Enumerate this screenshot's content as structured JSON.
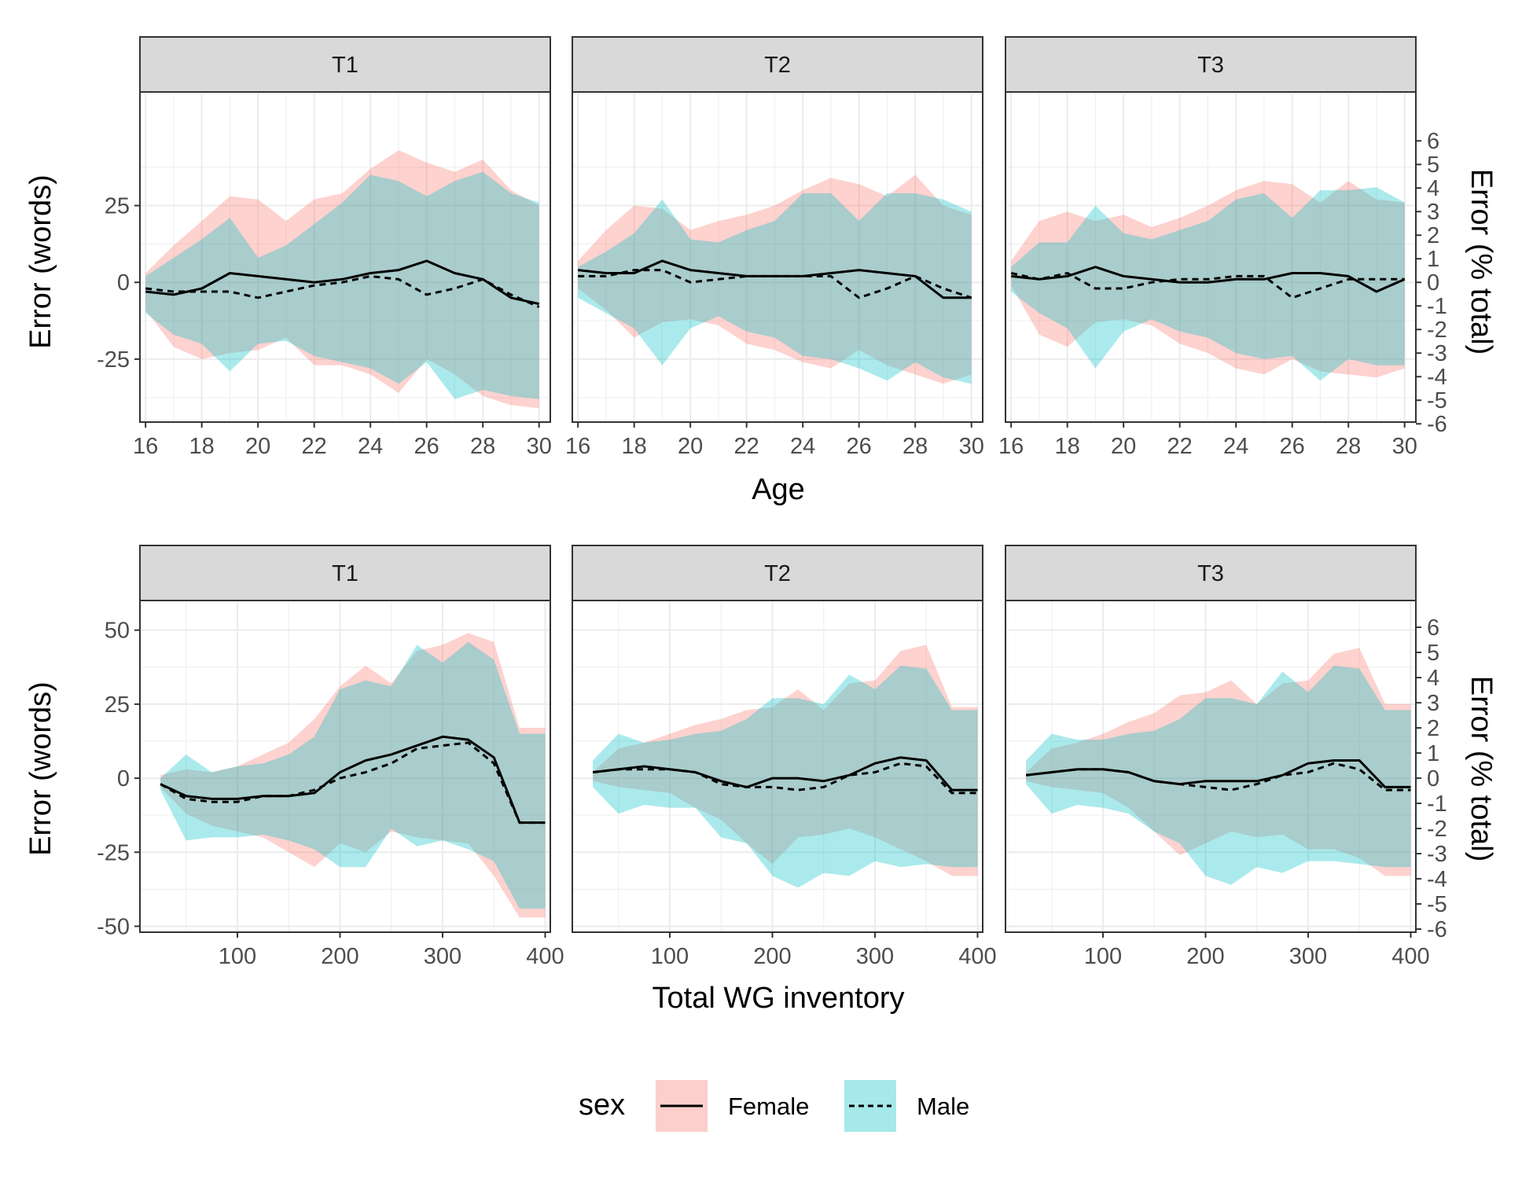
{
  "figure": {
    "x_axis_titles": [
      "Age",
      "Total WG inventory"
    ],
    "y_axis_title_left": "Error (words)",
    "y_axis_title_right": "Error (% total)"
  },
  "colors": {
    "female_fill": "#F8766D",
    "male_fill": "#00BFC4",
    "line": "#000000"
  },
  "legend": {
    "title": "sex",
    "placement": "bottom",
    "items": [
      {
        "label": "Female",
        "line": "solid",
        "fill": "#F8766D"
      },
      {
        "label": "Male",
        "line": "dashed",
        "fill": "#00BFC4"
      }
    ]
  },
  "chart_data": [
    {
      "type": "area",
      "facet": "T1",
      "xlabel": "Age",
      "ylabel": "Error (words)",
      "y2label": "Error (% total)",
      "xlim": [
        15.8,
        30.4
      ],
      "ylim": [
        -45.5,
        62
      ],
      "xticks": [
        16,
        18,
        20,
        22,
        24,
        26,
        28,
        30
      ],
      "yticks": [
        -25,
        0,
        25
      ],
      "y2ticks": [
        -6,
        -5,
        -4,
        -3,
        -2,
        -1,
        0,
        1,
        2,
        3,
        4,
        5,
        6
      ],
      "x": [
        16,
        17,
        18,
        19,
        20,
        21,
        22,
        23,
        24,
        25,
        26,
        27,
        28,
        29,
        30
      ],
      "series": [
        {
          "name": "Female",
          "line": [
            -3,
            -4,
            -2,
            3,
            2,
            1,
            0,
            1,
            3,
            4,
            7,
            3,
            1,
            -5,
            -7
          ],
          "lower": [
            -9,
            -21,
            -25,
            -23,
            -22,
            -18,
            -27,
            -27,
            -30,
            -36,
            -25,
            -30,
            -37,
            -40,
            -41
          ],
          "upper": [
            3,
            12,
            20,
            28,
            27,
            20,
            27,
            29,
            37,
            43,
            39,
            36,
            40,
            30,
            25
          ]
        },
        {
          "name": "Male",
          "line": [
            -2,
            -3,
            -3,
            -3,
            -5,
            -3,
            -1,
            0,
            2,
            1,
            -4,
            -2,
            1,
            -4,
            -8
          ],
          "lower": [
            -10,
            -17,
            -20,
            -29,
            -20,
            -19,
            -24,
            -26,
            -28,
            -33,
            -26,
            -38,
            -35,
            -37,
            -38
          ],
          "upper": [
            2,
            8,
            14,
            21,
            8,
            12,
            19,
            26,
            35,
            33,
            28,
            33,
            36,
            29,
            26
          ]
        }
      ]
    },
    {
      "type": "area",
      "facet": "T2",
      "xlabel": "Age",
      "ylabel": "Error (words)",
      "y2label": "Error (% total)",
      "xlim": [
        15.8,
        30.4
      ],
      "ylim": [
        -45.5,
        62
      ],
      "xticks": [
        16,
        18,
        20,
        22,
        24,
        26,
        28,
        30
      ],
      "yticks": [
        -25,
        0,
        25
      ],
      "y2ticks": [
        -6,
        -5,
        -4,
        -3,
        -2,
        -1,
        0,
        1,
        2,
        3,
        4,
        5,
        6
      ],
      "x": [
        16,
        17,
        18,
        19,
        20,
        21,
        22,
        23,
        24,
        25,
        26,
        27,
        28,
        29,
        30
      ],
      "series": [
        {
          "name": "Female",
          "line": [
            4,
            3,
            3,
            7,
            4,
            3,
            2,
            2,
            2,
            3,
            4,
            3,
            2,
            -5,
            -5
          ],
          "lower": [
            -2,
            -9,
            -18,
            -13,
            -12,
            -14,
            -20,
            -22,
            -26,
            -28,
            -22,
            -27,
            -30,
            -33,
            -30
          ],
          "upper": [
            7,
            17,
            25,
            24,
            17,
            20,
            22,
            25,
            30,
            34,
            32,
            28,
            35,
            25,
            22
          ],
          "female_upper_T2": [
            7,
            17,
            25,
            24,
            17,
            20,
            22,
            25,
            30,
            34,
            32,
            28,
            35,
            25,
            22
          ]
        },
        {
          "name": "Male",
          "line": [
            2,
            2,
            4,
            4,
            0,
            1,
            2,
            2,
            2,
            2,
            -5,
            -2,
            2,
            -2,
            -5
          ],
          "lower": [
            -5,
            -10,
            -15,
            -27,
            -15,
            -11,
            -16,
            -18,
            -24,
            -25,
            -28,
            -32,
            -26,
            -31,
            -33
          ],
          "upper": [
            5,
            10,
            16,
            27,
            14,
            13,
            17,
            20,
            29,
            29,
            20,
            29,
            29,
            27,
            23
          ]
        }
      ]
    },
    {
      "type": "area",
      "facet": "T3",
      "xlabel": "Age",
      "ylabel": "Error (words)",
      "y2label": "Error (% total)",
      "xlim": [
        15.8,
        30.4
      ],
      "ylim": [
        -45.5,
        62
      ],
      "xticks": [
        16,
        18,
        20,
        22,
        24,
        26,
        28,
        30
      ],
      "yticks": [
        -25,
        0,
        25
      ],
      "y2ticks": [
        -6,
        -5,
        -4,
        -3,
        -2,
        -1,
        0,
        1,
        2,
        3,
        4,
        5,
        6
      ],
      "x": [
        16,
        17,
        18,
        19,
        20,
        21,
        22,
        23,
        24,
        25,
        26,
        27,
        28,
        29,
        30
      ],
      "series": [
        {
          "name": "Female",
          "line": [
            2,
            1,
            2,
            5,
            2,
            1,
            0,
            0,
            1,
            1,
            3,
            3,
            2,
            -3,
            1
          ],
          "lower": [
            -1,
            -17,
            -21,
            -13,
            -12,
            -14,
            -20,
            -23,
            -28,
            -30,
            -25,
            -29,
            -30,
            -31,
            -28
          ],
          "upper": [
            7,
            20,
            23,
            20,
            22,
            18,
            21,
            25,
            30,
            33,
            32,
            26,
            33,
            27,
            26
          ],
          "female_upper_T3": [
            7,
            20,
            23,
            20,
            22,
            18,
            21,
            25,
            30,
            33,
            32,
            26,
            33,
            27,
            26
          ]
        },
        {
          "name": "Male",
          "line": [
            3,
            1,
            3,
            -2,
            -2,
            0,
            1,
            1,
            2,
            2,
            -5,
            -2,
            1,
            1,
            1
          ],
          "lower": [
            -3,
            -10,
            -15,
            -28,
            -16,
            -12,
            -16,
            -18,
            -23,
            -25,
            -24,
            -32,
            -25,
            -27,
            -27
          ],
          "upper": [
            5,
            13,
            13,
            25,
            16,
            14,
            17,
            20,
            27,
            29,
            21,
            30,
            30,
            31,
            26
          ]
        }
      ]
    },
    {
      "type": "area",
      "facet": "T1",
      "xlabel": "Total WG inventory",
      "ylabel": "Error (words)",
      "y2label": "Error (% total)",
      "xlim": [
        5,
        405
      ],
      "ylim": [
        -52,
        60
      ],
      "xticks": [
        100,
        200,
        300,
        400
      ],
      "yticks": [
        -50,
        -25,
        0,
        25,
        50
      ],
      "y2ticks": [
        -6,
        -5,
        -4,
        -3,
        -2,
        -1,
        0,
        1,
        2,
        3,
        4,
        5,
        6
      ],
      "x": [
        25,
        50,
        75,
        100,
        125,
        150,
        175,
        200,
        225,
        250,
        275,
        300,
        325,
        350,
        375,
        400
      ],
      "series": [
        {
          "name": "Female",
          "line": [
            -2,
            -6,
            -7,
            -7,
            -6,
            -6,
            -5,
            2,
            6,
            8,
            11,
            14,
            13,
            7,
            -15,
            -15
          ],
          "lower": [
            -3,
            -12,
            -16,
            -18,
            -20,
            -25,
            -30,
            -22,
            -25,
            -18,
            -20,
            -21,
            -22,
            -33,
            -47,
            -47
          ],
          "upper": [
            1,
            3,
            2,
            4,
            8,
            12,
            20,
            31,
            38,
            32,
            43,
            45,
            49,
            46,
            17,
            17
          ]
        },
        {
          "name": "Male",
          "line": [
            -2,
            -7,
            -8,
            -8,
            -6,
            -6,
            -4,
            0,
            2,
            5,
            10,
            11,
            12,
            5,
            -15,
            -15
          ],
          "lower": [
            -4,
            -21,
            -20,
            -20,
            -19,
            -21,
            -24,
            -30,
            -30,
            -17,
            -23,
            -21,
            -24,
            -28,
            -44,
            -44
          ],
          "upper": [
            0,
            8,
            2,
            4,
            5,
            8,
            14,
            30,
            33,
            31,
            45,
            39,
            46,
            40,
            15,
            15
          ]
        }
      ]
    },
    {
      "type": "area",
      "facet": "T2",
      "xlabel": "Total WG inventory",
      "ylabel": "Error (words)",
      "y2label": "Error (% total)",
      "xlim": [
        5,
        405
      ],
      "ylim": [
        -52,
        60
      ],
      "xticks": [
        100,
        200,
        300,
        400
      ],
      "yticks": [
        -50,
        -25,
        0,
        25,
        50
      ],
      "y2ticks": [
        -6,
        -5,
        -4,
        -3,
        -2,
        -1,
        0,
        1,
        2,
        3,
        4,
        5,
        6
      ],
      "x": [
        25,
        50,
        75,
        100,
        125,
        150,
        175,
        200,
        225,
        250,
        275,
        300,
        325,
        350,
        375,
        400
      ],
      "series": [
        {
          "name": "Female",
          "line": [
            2,
            3,
            4,
            3,
            2,
            -1,
            -3,
            0,
            0,
            -1,
            1,
            5,
            7,
            6,
            -4,
            -4
          ],
          "lower": [
            -1,
            -3,
            -4,
            -5,
            -10,
            -14,
            -22,
            -29,
            -20,
            -19,
            -17,
            -20,
            -24,
            -28,
            -33,
            -33
          ],
          "upper": [
            2,
            10,
            12,
            15,
            18,
            20,
            23,
            24,
            30,
            23,
            32,
            33,
            43,
            45,
            24,
            24
          ]
        },
        {
          "name": "Male",
          "line": [
            2,
            3,
            3,
            3,
            2,
            -2,
            -3,
            -3,
            -4,
            -3,
            1,
            2,
            5,
            4,
            -5,
            -5
          ],
          "lower": [
            -3,
            -12,
            -9,
            -10,
            -10,
            -20,
            -22,
            -33,
            -37,
            -32,
            -33,
            -28,
            -30,
            -29,
            -30,
            -30
          ],
          "upper": [
            6,
            15,
            12,
            13,
            15,
            16,
            20,
            27,
            27,
            25,
            35,
            30,
            38,
            37,
            23,
            23
          ]
        }
      ]
    },
    {
      "type": "area",
      "facet": "T3",
      "xlabel": "Total WG inventory",
      "ylabel": "Error (words)",
      "y2label": "Error (% total)",
      "xlim": [
        5,
        405
      ],
      "ylim": [
        -52,
        60
      ],
      "xticks": [
        100,
        200,
        300,
        400
      ],
      "yticks": [
        -50,
        -25,
        0,
        25,
        50
      ],
      "y2ticks": [
        -6,
        -5,
        -4,
        -3,
        -2,
        -1,
        0,
        1,
        2,
        3,
        4,
        5,
        6
      ],
      "x": [
        25,
        50,
        75,
        100,
        125,
        150,
        175,
        200,
        225,
        250,
        275,
        300,
        325,
        350,
        375,
        400
      ],
      "series": [
        {
          "name": "Female",
          "line": [
            1,
            2,
            3,
            3,
            2,
            -1,
            -2,
            -1,
            -1,
            -1,
            1,
            5,
            6,
            6,
            -3,
            -3
          ],
          "lower": [
            -1,
            -3,
            -4,
            -5,
            -10,
            -18,
            -26,
            -22,
            -18,
            -20,
            -19,
            -24,
            -24,
            -27,
            -33,
            -33
          ],
          "upper": [
            2,
            10,
            12,
            15,
            19,
            22,
            28,
            29,
            33,
            25,
            32,
            33,
            42,
            44,
            25,
            25
          ]
        },
        {
          "name": "Male",
          "line": [
            1,
            2,
            3,
            3,
            2,
            -1,
            -2,
            -3,
            -4,
            -2,
            1,
            2,
            5,
            3,
            -4,
            -4
          ],
          "lower": [
            -2,
            -12,
            -9,
            -10,
            -12,
            -18,
            -22,
            -33,
            -36,
            -30,
            -32,
            -28,
            -28,
            -29,
            -30,
            -30
          ],
          "upper": [
            6,
            15,
            13,
            13,
            15,
            16,
            20,
            27,
            27,
            25,
            36,
            29,
            38,
            37,
            23,
            23
          ]
        }
      ]
    }
  ]
}
